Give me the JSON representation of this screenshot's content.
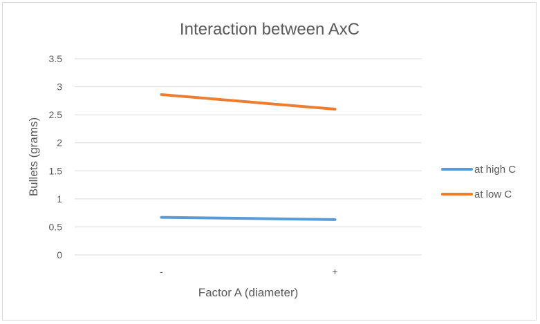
{
  "chart_data": {
    "type": "line",
    "title": "Interaction between AxC",
    "xlabel": "Factor A (diameter)",
    "ylabel": "Bullets (grams)",
    "categories": [
      "-",
      "+"
    ],
    "ylim": [
      0,
      3.5
    ],
    "yticks": [
      0,
      0.5,
      1,
      1.5,
      2,
      2.5,
      3,
      3.5
    ],
    "ytick_labels": [
      "0",
      "0.5",
      "1",
      "1.5",
      "2",
      "2.5",
      "3",
      "3.5"
    ],
    "grid": true,
    "legend_position": "right",
    "series": [
      {
        "name": "at high C",
        "values": [
          0.67,
          0.63
        ],
        "color": "#5b9bd5"
      },
      {
        "name": "at low C",
        "values": [
          2.86,
          2.6
        ],
        "color": "#ed7d31"
      }
    ]
  }
}
